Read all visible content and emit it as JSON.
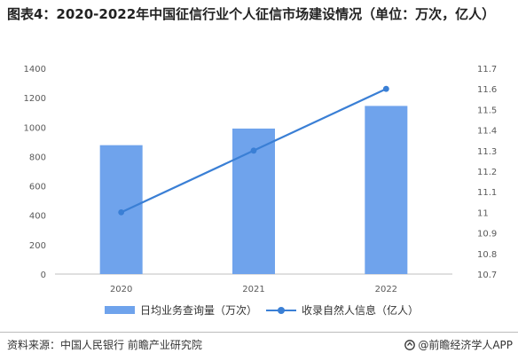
{
  "title": "图表4：2020-2022年中国征信行业个人征信市场建设情况（单位：万次，亿人）",
  "source": "资料来源：中国人民银行 前瞻产业研究院",
  "brand": "@前瞻经济学人APP",
  "colors": {
    "bar": "#6fa3ec",
    "line": "#3a7fd5",
    "grid": "#d9d9d9"
  },
  "chart_data": {
    "type": "bar",
    "categories": [
      "2020",
      "2021",
      "2022"
    ],
    "series": [
      {
        "name": "日均业务查询量（万次）",
        "type": "bar",
        "axis": "left",
        "values": [
          877,
          990,
          1144
        ]
      },
      {
        "name": "收录自然人信息（亿人）",
        "type": "line",
        "axis": "right",
        "values": [
          11.0,
          11.3,
          11.6
        ]
      }
    ],
    "y_left": {
      "min": 0,
      "max": 1400,
      "ticks": [
        0,
        200,
        400,
        600,
        800,
        1000,
        1200,
        1400
      ]
    },
    "y_right": {
      "min": 10.7,
      "max": 11.7,
      "ticks": [
        "10.7",
        "10.8",
        "10.9",
        "11",
        "11.1",
        "11.2",
        "11.3",
        "11.4",
        "11.5",
        "11.6",
        "11.7"
      ]
    },
    "grid": false,
    "legend": "bottom"
  }
}
